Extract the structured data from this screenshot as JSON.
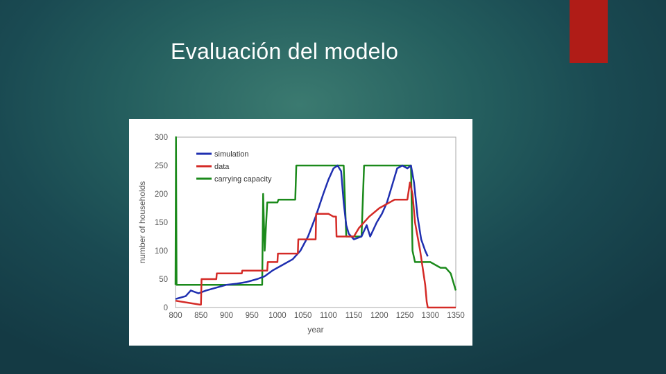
{
  "slide": {
    "title": "Evaluación del modelo",
    "accent_color": "#b01c17"
  },
  "chart_data": {
    "type": "line",
    "title": "",
    "xlabel": "year",
    "ylabel": "number of households",
    "xlim": [
      800,
      1350
    ],
    "ylim": [
      0,
      300
    ],
    "x_ticks": [
      800,
      850,
      900,
      950,
      1000,
      1050,
      1100,
      1150,
      1200,
      1250,
      1300,
      1350
    ],
    "y_ticks": [
      0,
      50,
      100,
      150,
      200,
      250,
      300
    ],
    "grid": false,
    "legend_position": "top-left",
    "series": [
      {
        "name": "simulation",
        "color": "#1f2fb0",
        "x": [
          800,
          820,
          830,
          845,
          860,
          880,
          900,
          920,
          940,
          960,
          975,
          990,
          1010,
          1030,
          1045,
          1060,
          1075,
          1090,
          1100,
          1110,
          1118,
          1125,
          1130,
          1135,
          1140,
          1150,
          1165,
          1175,
          1182,
          1195,
          1205,
          1215,
          1225,
          1235,
          1245,
          1255,
          1262,
          1268,
          1275,
          1282,
          1290,
          1295
        ],
        "y": [
          15,
          20,
          30,
          25,
          30,
          35,
          40,
          42,
          45,
          50,
          55,
          65,
          75,
          85,
          100,
          125,
          160,
          200,
          225,
          245,
          250,
          240,
          185,
          145,
          130,
          120,
          125,
          145,
          125,
          150,
          165,
          185,
          215,
          245,
          250,
          245,
          250,
          220,
          160,
          120,
          100,
          90
        ]
      },
      {
        "name": "data",
        "color": "#d42a26",
        "x": [
          800,
          848,
          850,
          851,
          880,
          881,
          930,
          931,
          980,
          981,
          1000,
          1001,
          1040,
          1041,
          1075,
          1076,
          1100,
          1110,
          1115,
          1116,
          1150,
          1160,
          1180,
          1200,
          1230,
          1255,
          1260,
          1265,
          1270,
          1280,
          1290,
          1293,
          1295,
          1350
        ],
        "y": [
          12,
          5,
          5,
          50,
          50,
          60,
          60,
          65,
          65,
          80,
          80,
          95,
          95,
          120,
          120,
          165,
          165,
          160,
          160,
          125,
          125,
          140,
          160,
          175,
          190,
          190,
          220,
          200,
          150,
          100,
          40,
          10,
          0,
          0
        ]
      },
      {
        "name": "carrying capacity",
        "color": "#1b8a1b",
        "x": [
          800,
          801,
          802,
          970,
          972,
          975,
          980,
          1000,
          1002,
          1035,
          1037,
          1040,
          1050,
          1052,
          1112,
          1114,
          1130,
          1135,
          1150,
          1165,
          1170,
          1172,
          1260,
          1262,
          1265,
          1270,
          1285,
          1300,
          1320,
          1330,
          1340,
          1350
        ],
        "y": [
          40,
          300,
          40,
          40,
          200,
          100,
          185,
          185,
          190,
          190,
          250,
          250,
          250,
          250,
          250,
          250,
          250,
          125,
          125,
          125,
          250,
          250,
          250,
          250,
          100,
          80,
          80,
          80,
          70,
          70,
          60,
          30
        ]
      }
    ]
  }
}
